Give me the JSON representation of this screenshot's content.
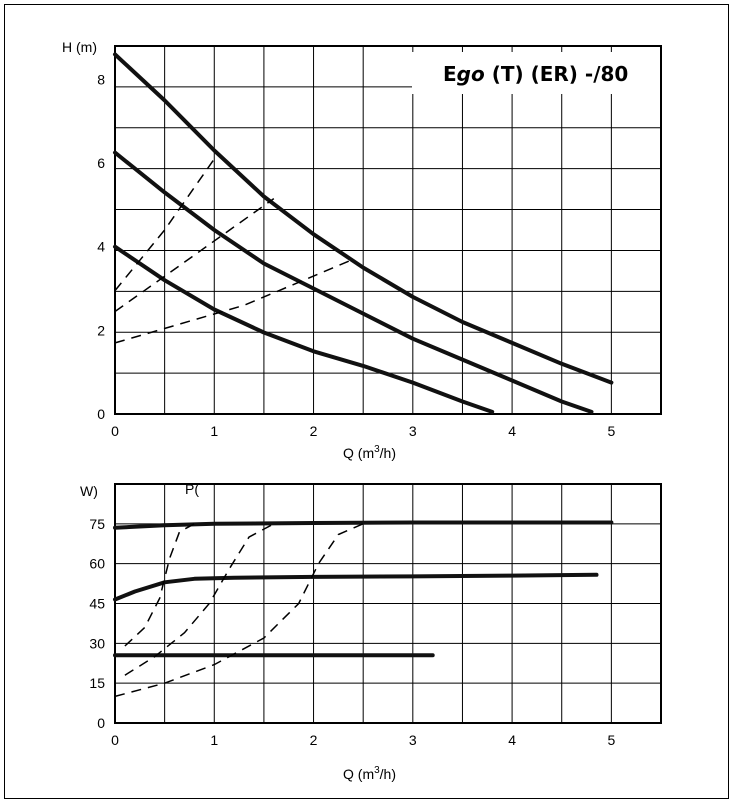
{
  "chart_data": [
    {
      "type": "line",
      "title_parts": [
        "E",
        "go",
        " (T) (ER) -/80"
      ],
      "ylabel": "H (m)",
      "xlabel_prefix": "Q (m",
      "xlabel_sup": "3",
      "xlabel_suffix": "/h)",
      "xlim": [
        0,
        5.5
      ],
      "ylim": [
        0,
        8.8
      ],
      "x_ticks": [
        0,
        1,
        2,
        3,
        4,
        5
      ],
      "y_ticks": [
        0,
        2,
        4,
        6,
        8
      ],
      "x_tick_labels": [
        "0",
        "1",
        "2",
        "3",
        "4",
        "5"
      ],
      "y_tick_labels": [
        "0",
        "2",
        "4",
        "6",
        "8"
      ],
      "grid": true,
      "series": [
        {
          "style": "solid",
          "points": [
            [
              0,
              8.6
            ],
            [
              0.5,
              7.5
            ],
            [
              1,
              6.3
            ],
            [
              1.5,
              5.2
            ],
            [
              2,
              4.3
            ],
            [
              2.5,
              3.5
            ],
            [
              3,
              2.8
            ],
            [
              3.5,
              2.2
            ],
            [
              4,
              1.7
            ],
            [
              4.5,
              1.2
            ],
            [
              5,
              0.75
            ]
          ]
        },
        {
          "style": "solid",
          "points": [
            [
              0,
              6.25
            ],
            [
              0.5,
              5.3
            ],
            [
              1,
              4.4
            ],
            [
              1.5,
              3.6
            ],
            [
              2,
              3.0
            ],
            [
              2.5,
              2.4
            ],
            [
              3,
              1.8
            ],
            [
              3.5,
              1.3
            ],
            [
              4,
              0.8
            ],
            [
              4.5,
              0.3
            ],
            [
              4.8,
              0.05
            ]
          ]
        },
        {
          "style": "solid",
          "points": [
            [
              0,
              4.0
            ],
            [
              0.5,
              3.2
            ],
            [
              1,
              2.5
            ],
            [
              1.5,
              1.95
            ],
            [
              2,
              1.5
            ],
            [
              2.5,
              1.15
            ],
            [
              3,
              0.75
            ],
            [
              3.5,
              0.3
            ],
            [
              3.8,
              0.05
            ]
          ]
        },
        {
          "style": "dashed",
          "points": [
            [
              0,
              2.95
            ],
            [
              0.5,
              4.4
            ],
            [
              1,
              6.1
            ]
          ]
        },
        {
          "style": "dashed",
          "points": [
            [
              0,
              2.45
            ],
            [
              0.8,
              3.8
            ],
            [
              1.6,
              5.15
            ]
          ]
        },
        {
          "style": "dashed",
          "points": [
            [
              0,
              1.7
            ],
            [
              1.3,
              2.6
            ],
            [
              2.4,
              3.7
            ]
          ]
        }
      ]
    },
    {
      "type": "line",
      "ylabel": "W)",
      "ylabel2": "P(",
      "xlabel_prefix": "Q (m",
      "xlabel_sup": "3",
      "xlabel_suffix": "/h)",
      "xlim": [
        0,
        5.5
      ],
      "ylim": [
        0,
        90
      ],
      "x_ticks": [
        0,
        1,
        2,
        3,
        4,
        5
      ],
      "y_ticks": [
        0,
        15,
        30,
        45,
        60,
        75
      ],
      "x_tick_labels": [
        "0",
        "1",
        "2",
        "3",
        "4",
        "5"
      ],
      "y_tick_labels": [
        "0",
        "15",
        "30",
        "45",
        "60",
        "75"
      ],
      "grid": true,
      "series": [
        {
          "style": "solid",
          "points": [
            [
              0,
              73.5
            ],
            [
              0.5,
              74.5
            ],
            [
              1,
              75
            ],
            [
              2,
              75.3
            ],
            [
              3,
              75.5
            ],
            [
              4,
              75.5
            ],
            [
              5,
              75.5
            ]
          ]
        },
        {
          "style": "solid",
          "points": [
            [
              0,
              46.5
            ],
            [
              0.2,
              49.5
            ],
            [
              0.5,
              53
            ],
            [
              0.8,
              54.3
            ],
            [
              1.2,
              54.7
            ],
            [
              2,
              55
            ],
            [
              3,
              55.2
            ],
            [
              4,
              55.5
            ],
            [
              4.85,
              55.8
            ]
          ]
        },
        {
          "style": "solid",
          "points": [
            [
              0,
              25.5
            ],
            [
              1,
              25.5
            ],
            [
              2,
              25.5
            ],
            [
              3.2,
              25.5
            ]
          ]
        },
        {
          "style": "dashed",
          "points": [
            [
              0.1,
              29
            ],
            [
              0.3,
              36
            ],
            [
              0.45,
              47
            ],
            [
              0.55,
              62
            ],
            [
              0.65,
              72
            ],
            [
              0.8,
              75
            ]
          ]
        },
        {
          "style": "dashed",
          "points": [
            [
              0.1,
              18
            ],
            [
              0.4,
              25
            ],
            [
              0.7,
              34
            ],
            [
              0.95,
              45
            ],
            [
              1.15,
              58
            ],
            [
              1.35,
              70
            ],
            [
              1.6,
              75
            ]
          ]
        },
        {
          "style": "dashed",
          "points": [
            [
              0,
              10
            ],
            [
              0.5,
              15
            ],
            [
              1,
              22
            ],
            [
              1.5,
              32
            ],
            [
              1.85,
              45
            ],
            [
              2.05,
              60
            ],
            [
              2.25,
              71
            ],
            [
              2.5,
              75
            ]
          ]
        }
      ]
    }
  ]
}
